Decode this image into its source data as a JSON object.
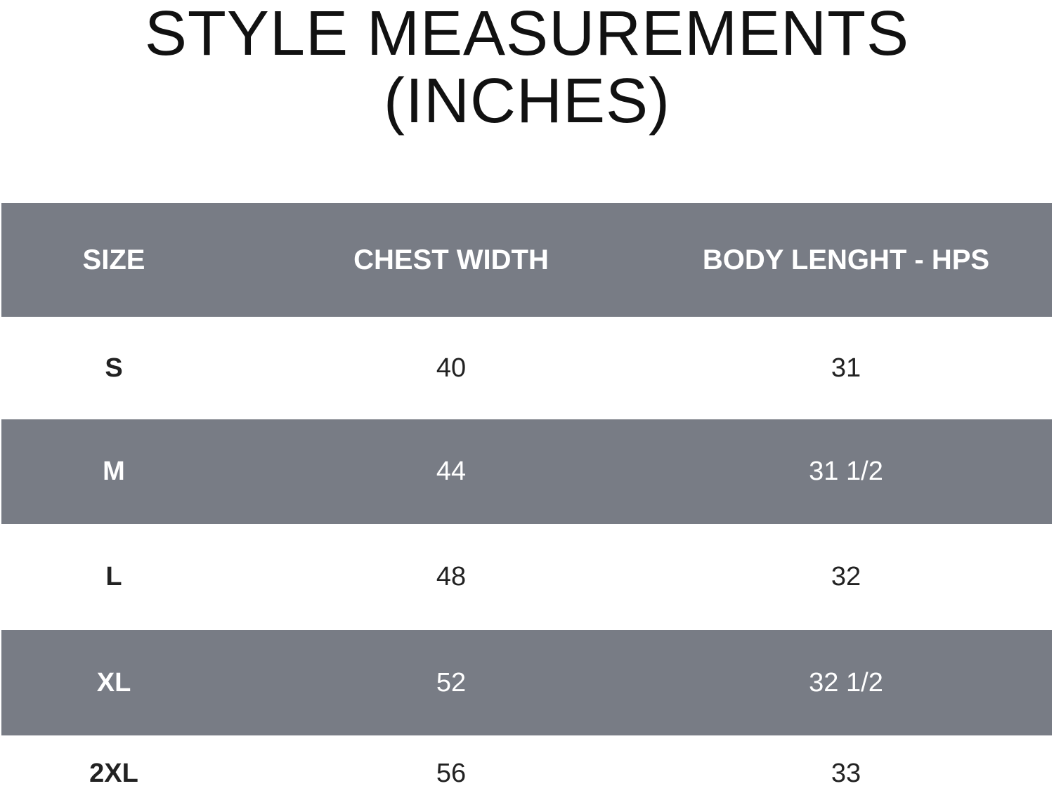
{
  "title": "STYLE MEASUREMENTS (INCHES)",
  "table": {
    "header": [
      "SIZE",
      "CHEST WIDTH",
      "BODY LENGHT - HPS"
    ],
    "rows": [
      [
        "S",
        "40",
        "31"
      ],
      [
        "M",
        "44",
        "31 1/2"
      ],
      [
        "L",
        "48",
        "32"
      ],
      [
        "XL",
        "52",
        "32 1/2"
      ],
      [
        "2XL",
        "56",
        "33"
      ]
    ]
  }
}
